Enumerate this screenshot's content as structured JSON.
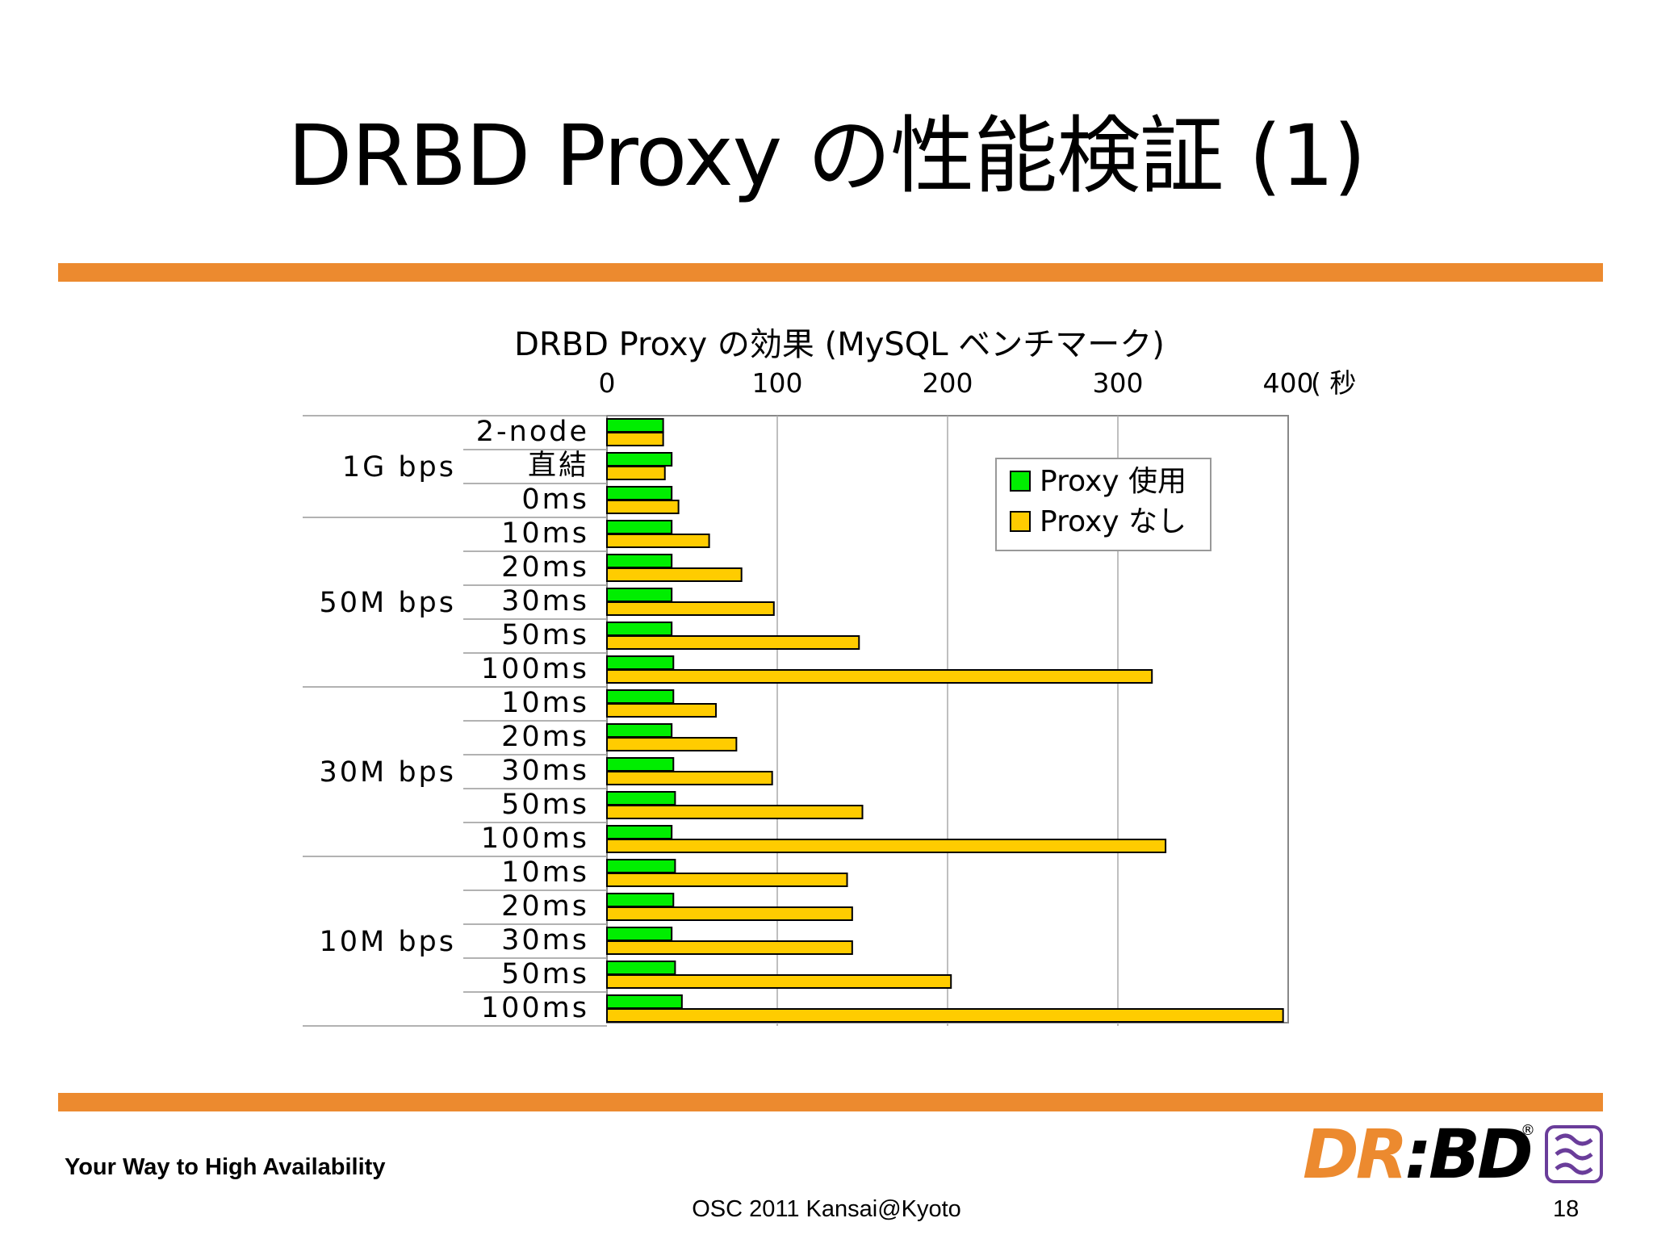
{
  "slide": {
    "title": "DRBD Proxy の性能検証 (1)",
    "tagline": "Your Way to High Availability",
    "event": "OSC 2011 Kansai@Kyoto",
    "page_number": "18"
  },
  "logo": {
    "text_a": "DR",
    "text_b": ":BD",
    "registered": "®"
  },
  "colors": {
    "accent": "#ec8a2f",
    "series_with_proxy": "#00ee00",
    "series_without_proxy": "#ffcc00"
  },
  "chart_data": {
    "type": "bar",
    "orientation": "horizontal",
    "title": "DRBD Proxy の効果 (MySQL ベンチマーク)",
    "unit_label": "( 秒",
    "xlim": [
      0,
      400
    ],
    "xticks": [
      "0",
      "100",
      "200",
      "300",
      "400"
    ],
    "grid": true,
    "legend_position": "top-right",
    "groups": [
      {
        "label": "1G bps",
        "start": 0,
        "count": 3
      },
      {
        "label": "50M bps",
        "start": 3,
        "count": 5
      },
      {
        "label": "30M bps",
        "start": 8,
        "count": 5
      },
      {
        "label": "10M bps",
        "start": 13,
        "count": 5
      }
    ],
    "categories": [
      "2-node",
      "直結",
      "0ms",
      "10ms",
      "20ms",
      "30ms",
      "50ms",
      "100ms",
      "10ms",
      "20ms",
      "30ms",
      "50ms",
      "100ms",
      "10ms",
      "20ms",
      "30ms",
      "50ms",
      "100ms"
    ],
    "series": [
      {
        "name": "Proxy 使用",
        "color": "#00ee00",
        "values": [
          33,
          38,
          38,
          38,
          38,
          38,
          38,
          39,
          39,
          38,
          39,
          40,
          38,
          40,
          39,
          38,
          40,
          44
        ]
      },
      {
        "name": "Proxy なし",
        "color": "#ffcc00",
        "values": [
          33,
          34,
          42,
          60,
          79,
          98,
          148,
          320,
          64,
          76,
          97,
          150,
          328,
          141,
          144,
          144,
          202,
          397
        ]
      }
    ]
  }
}
